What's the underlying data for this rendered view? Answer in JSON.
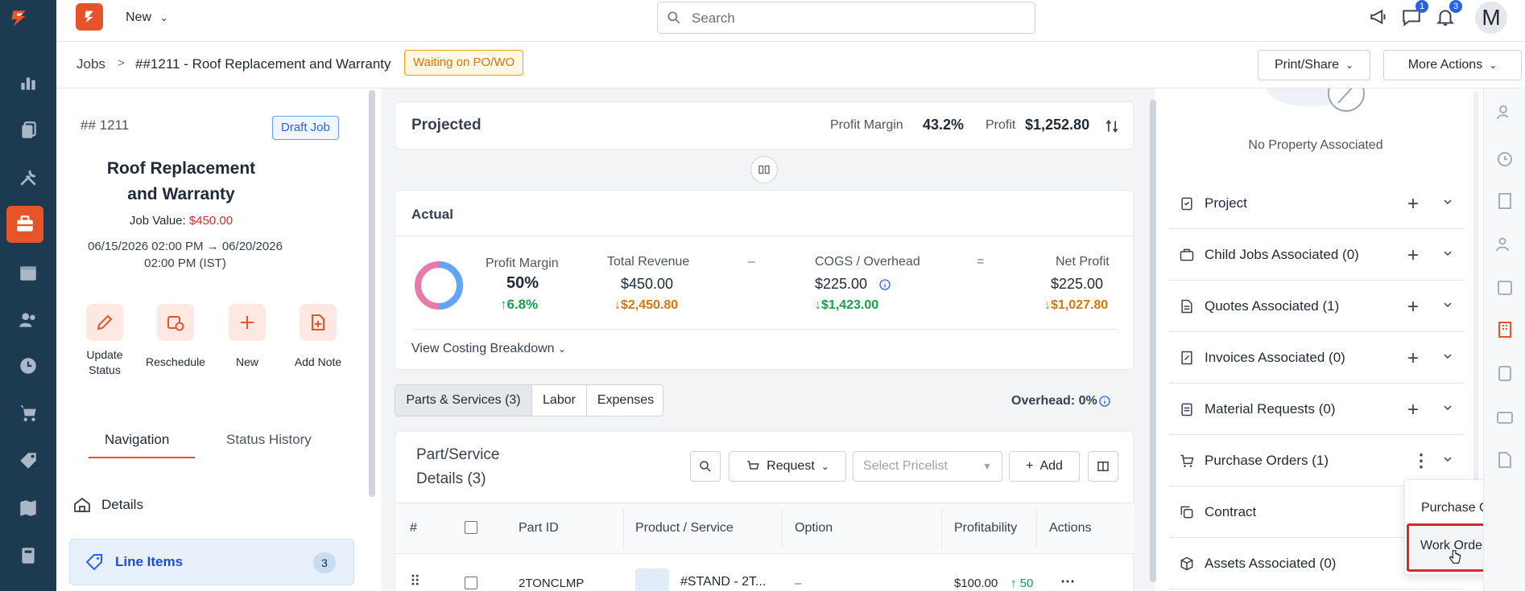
{
  "topbar": {
    "new_label": "New",
    "search_placeholder": "Search",
    "chat_badge": "1",
    "bell_badge": "3",
    "avatar_letter": "M"
  },
  "breadcrumb": {
    "root": "Jobs",
    "separator": ">",
    "current": "##1211 - Roof Replacement and Warranty",
    "status": "Waiting on PO/WO"
  },
  "header_actions": {
    "print_share": "Print/Share",
    "more_actions": "More Actions"
  },
  "job": {
    "number": "## 1211",
    "draft_badge": "Draft Job",
    "title": "Roof Replacement and Warranty",
    "job_value_label": "Job Value:",
    "job_value": "$450.00",
    "date_range": "06/15/2026 02:00 PM → 06/20/2026 02:00 PM (IST)",
    "actions": [
      {
        "label": "Update Status",
        "icon": "pencil-icon"
      },
      {
        "label": "Reschedule",
        "icon": "calendar-clock-icon"
      },
      {
        "label": "New",
        "icon": "plus-icon"
      },
      {
        "label": "Add Note",
        "icon": "file-plus-icon"
      }
    ],
    "tabs": [
      "Navigation",
      "Status History"
    ],
    "nav_items": [
      {
        "label": "Details",
        "icon": "home-icon"
      },
      {
        "label": "Line Items",
        "icon": "tag-icon",
        "count": "3"
      }
    ]
  },
  "projected": {
    "title": "Projected",
    "profit_margin_label": "Profit Margin",
    "profit_margin": "43.2%",
    "profit_label": "Profit",
    "profit": "$1,252.80"
  },
  "actual": {
    "title": "Actual",
    "profit_margin_label": "Profit Margin",
    "profit_margin": "50%",
    "profit_margin_delta": "6.8%",
    "total_revenue_label": "Total Revenue",
    "total_revenue": "$450.00",
    "total_revenue_delta": "$2,450.80",
    "minus": "–",
    "cogs_label": "COGS / Overhead",
    "cogs": "$225.00",
    "cogs_delta": "$1,423.00",
    "equals": "=",
    "net_profit_label": "Net Profit",
    "net_profit": "$225.00",
    "net_profit_delta": "$1,027.80",
    "breakdown_link": "View Costing Breakdown",
    "donut": {
      "pink_fraction": 0.5,
      "blue_fraction": 0.5,
      "pink": "#e879a9",
      "blue": "#60a5fa"
    }
  },
  "parts_tabs": {
    "tabs": [
      "Parts & Services (3)",
      "Labor",
      "Expenses"
    ],
    "overhead_label": "Overhead:",
    "overhead_value": "0%"
  },
  "parts": {
    "title": "Part/Service Details (3)",
    "title_line1": "Part/Service",
    "title_line2": "Details (3)",
    "request_label": "Request",
    "pricelist_placeholder": "Select Pricelist",
    "add_label": "Add",
    "columns": [
      "#",
      "",
      "Part ID",
      "Product / Service",
      "Option",
      "Profitability",
      "Actions"
    ],
    "rows": [
      {
        "part_id": "2TONCLMP",
        "product": "#STAND - 2T...",
        "option": "–",
        "profitability": "$100.00",
        "profit_delta": "50"
      }
    ]
  },
  "property": {
    "none_label": "No Property Associated"
  },
  "sections": [
    {
      "label": "Project",
      "icon": "clipboard-icon"
    },
    {
      "label": "Child Jobs Associated (0)",
      "icon": "briefcase-icon"
    },
    {
      "label": "Quotes Associated (1)",
      "icon": "document-icon"
    },
    {
      "label": "Invoices Associated (0)",
      "icon": "invoice-icon"
    },
    {
      "label": "Material Requests (0)",
      "icon": "clipboard-list-icon"
    },
    {
      "label": "Purchase Orders (1)",
      "icon": "cart-icon"
    },
    {
      "label": "Contract",
      "icon": "copy-icon"
    },
    {
      "label": "Assets Associated (0)",
      "icon": "box-icon"
    }
  ],
  "po_menu": {
    "items": [
      "Purchase Order",
      "Work Order"
    ],
    "highlight": "#dc2626"
  },
  "colors": {
    "accent": "#e8542a",
    "rail": "#1c3a50",
    "warning_bg": "#fff7e6",
    "warning_text": "#d97706",
    "green": "#16a34a",
    "orange": "#d97706",
    "red": "#dc2626",
    "blue": "#2563eb"
  }
}
